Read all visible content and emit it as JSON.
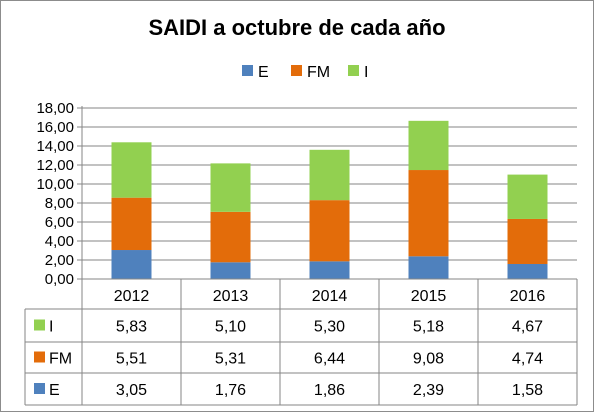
{
  "chart_data": {
    "type": "bar",
    "stacked": true,
    "title": "SAIDI a octubre de cada año",
    "categories": [
      "2012",
      "2013",
      "2014",
      "2015",
      "2016"
    ],
    "series": [
      {
        "name": "E",
        "color": "#4f81bd",
        "values": [
          3.05,
          1.76,
          1.86,
          2.39,
          1.58
        ],
        "labels": [
          "3,05",
          "1,76",
          "1,86",
          "2,39",
          "1,58"
        ]
      },
      {
        "name": "FM",
        "color": "#e36c0a",
        "values": [
          5.51,
          5.31,
          6.44,
          9.08,
          4.74
        ],
        "labels": [
          "5,51",
          "5,31",
          "6,44",
          "9,08",
          "4,74"
        ]
      },
      {
        "name": "I",
        "color": "#92d050",
        "values": [
          5.83,
          5.1,
          5.3,
          5.18,
          4.67
        ],
        "labels": [
          "5,83",
          "5,10",
          "5,30",
          "5,18",
          "4,67"
        ]
      }
    ],
    "y_ticks": [
      "0,00",
      "2,00",
      "4,00",
      "6,00",
      "8,00",
      "10,00",
      "12,00",
      "14,00",
      "16,00",
      "18,00"
    ],
    "ylim": [
      0,
      18
    ],
    "grid": true,
    "legend_position": "top",
    "data_table": true,
    "data_table_row_order": [
      "I",
      "FM",
      "E"
    ]
  }
}
